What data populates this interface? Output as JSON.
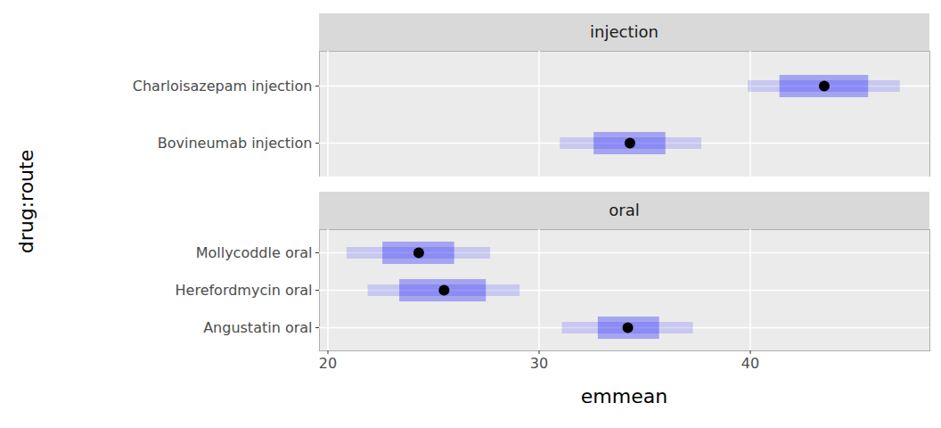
{
  "chart_data": {
    "type": "dot",
    "orientation": "horizontal",
    "xlabel": "emmean",
    "ylabel": "drug:route",
    "panels": [
      "injection",
      "oral"
    ],
    "categories": [
      "Charloisazepam injection",
      "Bovineumab injection",
      "Mollycoddle oral",
      "Herefordmycin oral",
      "Angustatin oral"
    ],
    "panel": [
      "injection",
      "injection",
      "oral",
      "oral",
      "oral"
    ],
    "values": [
      43.5,
      34.3,
      24.3,
      25.5,
      34.2
    ],
    "lower_CL": [
      39.9,
      31.0,
      20.9,
      21.9,
      31.1
    ],
    "upper_CL": [
      47.1,
      37.7,
      27.7,
      29.1,
      37.3
    ],
    "comparison_lower": [
      41.4,
      32.6,
      22.6,
      23.4,
      32.8
    ],
    "comparison_upper": [
      45.6,
      36.0,
      26.0,
      27.5,
      35.7
    ],
    "color": "#0000ff",
    "xlim": [
      19.6,
      48.5
    ],
    "xticks": [
      20,
      30,
      40
    ],
    "grid": true
  }
}
